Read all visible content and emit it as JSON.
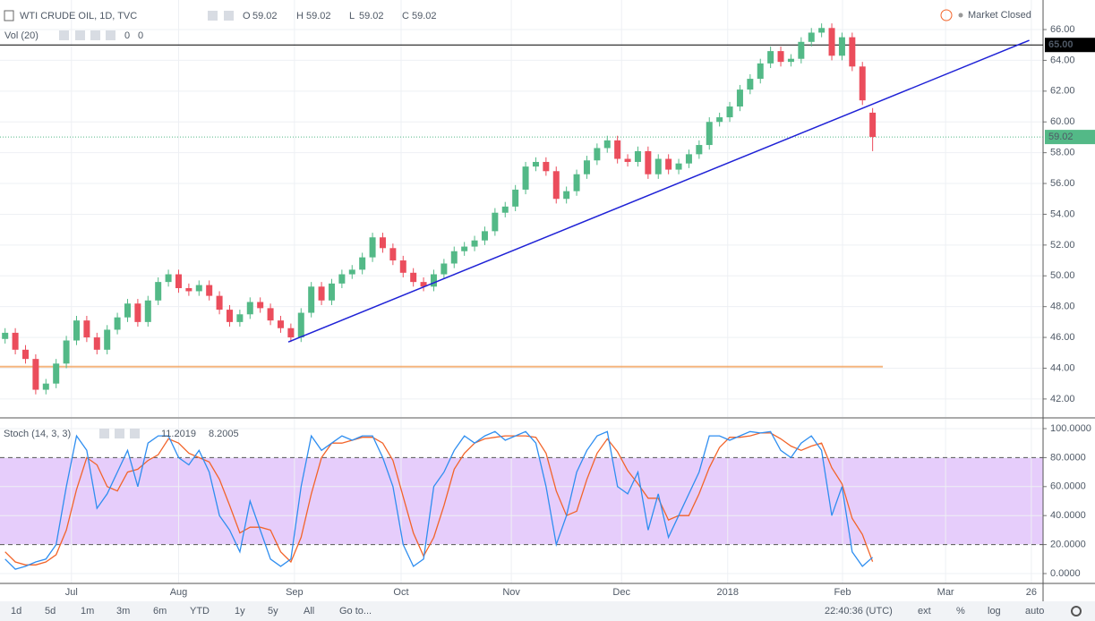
{
  "ui": {
    "symbol": "WTI CRUDE OIL, 1D, TVC",
    "ohlc": [
      {
        "label": "O",
        "value": "59.02"
      },
      {
        "label": "H",
        "value": "59.02"
      },
      {
        "label": "L",
        "value": "59.02"
      },
      {
        "label": "C",
        "value": "59.02"
      }
    ],
    "volume": {
      "label": "Vol (20)",
      "values": [
        "0",
        "0"
      ]
    },
    "market_status": "Market Closed",
    "toolbar": {
      "ranges": [
        "1d",
        "5d",
        "1m",
        "3m",
        "6m",
        "YTD",
        "1y",
        "5y",
        "All",
        "Go to..."
      ],
      "clock": "22:40:36 (UTC)",
      "options": [
        "ext",
        "%",
        "log",
        "auto"
      ]
    }
  },
  "chart_data": [
    {
      "type": "candlestick",
      "x": [
        1,
        3,
        5,
        7,
        9,
        11,
        13,
        15,
        17,
        19,
        21,
        23,
        25,
        27,
        29,
        31,
        33,
        35,
        37,
        39,
        41,
        43,
        45,
        47,
        49,
        51,
        53,
        55,
        57,
        59,
        61,
        63,
        65,
        67,
        69,
        71,
        73,
        75,
        77,
        79,
        81,
        83,
        85,
        87,
        89,
        91,
        93,
        95,
        97,
        99,
        101,
        103,
        105,
        107,
        109,
        111,
        113,
        115,
        117,
        119,
        121,
        123,
        125,
        127,
        129,
        131,
        133,
        135,
        137,
        139,
        141,
        143,
        145,
        147,
        149,
        151,
        153,
        155,
        157,
        159,
        161,
        163,
        165,
        167,
        169,
        171
      ],
      "open": [
        45.9,
        46.3,
        45.2,
        44.6,
        42.6,
        43.0,
        44.3,
        45.8,
        47.1,
        46.0,
        45.2,
        46.5,
        47.3,
        48.2,
        47.0,
        48.4,
        49.6,
        50.1,
        49.2,
        49.0,
        49.4,
        48.7,
        47.8,
        47.0,
        47.5,
        48.3,
        47.9,
        47.1,
        46.6,
        46.0,
        47.6,
        49.3,
        48.4,
        49.5,
        50.1,
        50.4,
        51.2,
        52.5,
        51.8,
        51.0,
        50.2,
        49.6,
        49.3,
        50.1,
        50.8,
        51.6,
        51.9,
        52.3,
        52.9,
        54.1,
        54.5,
        55.6,
        57.1,
        57.4,
        56.8,
        55.0,
        55.5,
        56.6,
        57.5,
        58.3,
        58.8,
        57.6,
        57.4,
        58.1,
        56.6,
        57.6,
        56.9,
        57.3,
        57.9,
        58.5,
        60.0,
        60.3,
        61.0,
        62.1,
        62.8,
        63.8,
        64.6,
        63.9,
        64.1,
        65.2,
        65.8,
        66.1,
        64.3,
        65.5,
        63.6,
        60.6
      ],
      "high": [
        46.6,
        46.6,
        45.5,
        44.9,
        43.3,
        44.6,
        46.1,
        47.4,
        47.4,
        46.3,
        46.8,
        47.6,
        48.5,
        48.5,
        48.7,
        49.9,
        50.4,
        50.4,
        49.5,
        49.7,
        49.7,
        49.0,
        48.1,
        47.8,
        48.6,
        48.6,
        48.2,
        47.4,
        46.9,
        47.9,
        49.6,
        49.6,
        49.8,
        50.4,
        50.7,
        51.5,
        52.8,
        52.8,
        52.1,
        51.3,
        50.5,
        49.9,
        50.4,
        51.1,
        51.9,
        52.2,
        52.6,
        53.2,
        54.4,
        54.8,
        55.9,
        57.4,
        57.7,
        57.7,
        57.1,
        55.8,
        56.9,
        57.8,
        58.6,
        59.1,
        59.1,
        57.9,
        58.4,
        58.4,
        57.9,
        57.9,
        57.6,
        58.2,
        58.8,
        60.3,
        60.6,
        61.3,
        62.4,
        63.1,
        64.1,
        64.9,
        64.9,
        64.4,
        65.5,
        66.1,
        66.4,
        66.4,
        65.8,
        65.8,
        63.9,
        60.9
      ],
      "low": [
        45.6,
        44.9,
        44.3,
        42.3,
        42.3,
        42.7,
        44.0,
        45.5,
        45.7,
        44.9,
        44.9,
        46.2,
        47.0,
        46.7,
        46.7,
        48.1,
        49.3,
        48.9,
        48.7,
        48.7,
        48.4,
        47.5,
        46.7,
        46.7,
        47.2,
        47.6,
        46.8,
        46.3,
        45.7,
        45.7,
        47.3,
        48.1,
        48.1,
        49.2,
        49.8,
        50.1,
        50.9,
        51.5,
        50.7,
        49.9,
        49.3,
        49.0,
        49.0,
        49.8,
        50.5,
        51.3,
        51.6,
        52.0,
        52.6,
        53.8,
        54.2,
        55.3,
        56.8,
        56.5,
        54.7,
        54.7,
        55.2,
        56.3,
        57.2,
        58.0,
        57.3,
        57.1,
        57.1,
        56.3,
        56.3,
        56.6,
        56.6,
        57.0,
        57.6,
        58.2,
        59.7,
        60.0,
        60.7,
        61.8,
        62.5,
        63.5,
        63.6,
        63.6,
        63.8,
        64.9,
        65.5,
        64.0,
        64.0,
        63.3,
        61.1,
        58.1
      ],
      "close": [
        46.3,
        45.2,
        44.6,
        42.6,
        43.0,
        44.3,
        45.8,
        47.1,
        46.0,
        45.2,
        46.5,
        47.3,
        48.2,
        47.0,
        48.4,
        49.6,
        50.1,
        49.2,
        49.0,
        49.4,
        48.7,
        47.8,
        47.0,
        47.5,
        48.3,
        47.9,
        47.1,
        46.6,
        46.0,
        47.6,
        49.3,
        48.4,
        49.5,
        50.1,
        50.4,
        51.2,
        52.5,
        51.8,
        51.0,
        50.2,
        49.6,
        49.3,
        50.1,
        50.8,
        51.6,
        51.9,
        52.3,
        52.9,
        54.1,
        54.5,
        55.6,
        57.1,
        57.4,
        56.8,
        55.0,
        55.5,
        56.6,
        57.5,
        58.3,
        58.8,
        57.6,
        57.4,
        58.1,
        56.6,
        57.6,
        56.9,
        57.3,
        57.9,
        58.5,
        60.0,
        60.3,
        61.0,
        62.1,
        62.8,
        63.8,
        64.6,
        63.9,
        64.1,
        65.2,
        65.8,
        66.1,
        64.3,
        65.5,
        63.6,
        61.4,
        59.02
      ],
      "up_color": "#53b987",
      "down_color": "#eb4d5c",
      "xlim": [
        0,
        204.4
      ],
      "ylim": [
        40.83,
        67.92
      ],
      "yticks": [
        {
          "value": 42,
          "label": "42.00"
        },
        {
          "value": 44,
          "label": "44.00"
        },
        {
          "value": 46,
          "label": "46.00"
        },
        {
          "value": 48,
          "label": "48.00"
        },
        {
          "value": 50,
          "label": "50.00"
        },
        {
          "value": 52,
          "label": "52.00"
        },
        {
          "value": 54,
          "label": "54.00"
        },
        {
          "value": 56,
          "label": "56.00"
        },
        {
          "value": 58,
          "label": "58.00"
        },
        {
          "value": 60,
          "label": "60.00"
        },
        {
          "value": 62,
          "label": "62.00"
        },
        {
          "value": 64,
          "label": "64.00"
        },
        {
          "value": 66,
          "label": "66.00"
        }
      ],
      "grid": true,
      "hlines": [
        {
          "value": 65,
          "label": "65.00",
          "color": "#000000"
        },
        {
          "value": 59.02,
          "label": "59.02",
          "color": "#53b987"
        }
      ],
      "support": {
        "value": 44.1,
        "x": [
          0,
          173
        ],
        "color": "#f2a35e"
      },
      "trendline": {
        "x": [
          56.5,
          201.7
        ],
        "y": [
          45.7,
          65.3
        ],
        "color": "#1f22d6"
      }
    },
    {
      "type": "line",
      "title": "Stoch (14, 3, 3)",
      "x": [
        1,
        3,
        5,
        7,
        9,
        11,
        13,
        15,
        17,
        19,
        21,
        23,
        25,
        27,
        29,
        31,
        33,
        35,
        37,
        39,
        41,
        43,
        45,
        47,
        49,
        51,
        53,
        55,
        57,
        59,
        61,
        63,
        65,
        67,
        69,
        71,
        73,
        75,
        77,
        79,
        81,
        83,
        85,
        87,
        89,
        91,
        93,
        95,
        97,
        99,
        101,
        103,
        105,
        107,
        109,
        111,
        113,
        115,
        117,
        119,
        121,
        123,
        125,
        127,
        129,
        131,
        133,
        135,
        137,
        139,
        141,
        143,
        145,
        147,
        149,
        151,
        153,
        155,
        157,
        159,
        161,
        163,
        165,
        167,
        169,
        171
      ],
      "series": [
        {
          "color": "#2f8ef0",
          "values": [
            10,
            3,
            5,
            8,
            10,
            20,
            60,
            95,
            85,
            45,
            55,
            70,
            85,
            60,
            90,
            95,
            95,
            80,
            75,
            85,
            70,
            40,
            30,
            15,
            50,
            30,
            10,
            5,
            10,
            60,
            95,
            85,
            90,
            95,
            92,
            95,
            95,
            80,
            60,
            20,
            5,
            10,
            60,
            70,
            85,
            95,
            90,
            95,
            98,
            92,
            95,
            98,
            90,
            60,
            20,
            40,
            70,
            85,
            95,
            98,
            60,
            55,
            70,
            30,
            55,
            25,
            40,
            55,
            70,
            95,
            95,
            92,
            95,
            98,
            97,
            98,
            85,
            80,
            90,
            95,
            85,
            40,
            60,
            15,
            5,
            11.2019
          ]
        },
        {
          "color": "#f2642a",
          "values": [
            15,
            8,
            6,
            6,
            8,
            13,
            30,
            58,
            80,
            75,
            60,
            57,
            70,
            72,
            78,
            82,
            93,
            90,
            83,
            80,
            77,
            65,
            47,
            28,
            32,
            32,
            30,
            15,
            8,
            25,
            55,
            80,
            90,
            90,
            92,
            94,
            94,
            90,
            78,
            53,
            28,
            12,
            25,
            47,
            72,
            83,
            90,
            93,
            94,
            95,
            95,
            95,
            94,
            83,
            57,
            40,
            43,
            65,
            83,
            93,
            84,
            71,
            62,
            52,
            52,
            37,
            40,
            40,
            55,
            73,
            87,
            94,
            94,
            95,
            97,
            97,
            93,
            88,
            85,
            88,
            90,
            73,
            62,
            38,
            27,
            8.2005
          ]
        }
      ],
      "band": [
        20,
        80
      ],
      "band_color": "#e6cdfb",
      "xlim": [
        0,
        204.4
      ],
      "ylim": [
        -6.8,
        106.8
      ],
      "yticks": [
        {
          "value": 0,
          "label": "0.0000"
        },
        {
          "value": 20,
          "label": "20.0000"
        },
        {
          "value": 40,
          "label": "40.0000"
        },
        {
          "value": 60,
          "label": "60.0000"
        },
        {
          "value": 80,
          "label": "80.0000"
        },
        {
          "value": 100,
          "label": "100.0000"
        }
      ],
      "xticks": [
        {
          "value": 14,
          "label": "Jul"
        },
        {
          "value": 35,
          "label": "Aug"
        },
        {
          "value": 57.7,
          "label": "Sep"
        },
        {
          "value": 78.6,
          "label": "Oct"
        },
        {
          "value": 100.2,
          "label": "Nov"
        },
        {
          "value": 121.8,
          "label": "Dec"
        },
        {
          "value": 142.6,
          "label": "2018"
        },
        {
          "value": 165.1,
          "label": "Feb"
        },
        {
          "value": 185.3,
          "label": "Mar"
        },
        {
          "value": 202.1,
          "label": "26"
        }
      ],
      "grid": true
    }
  ]
}
